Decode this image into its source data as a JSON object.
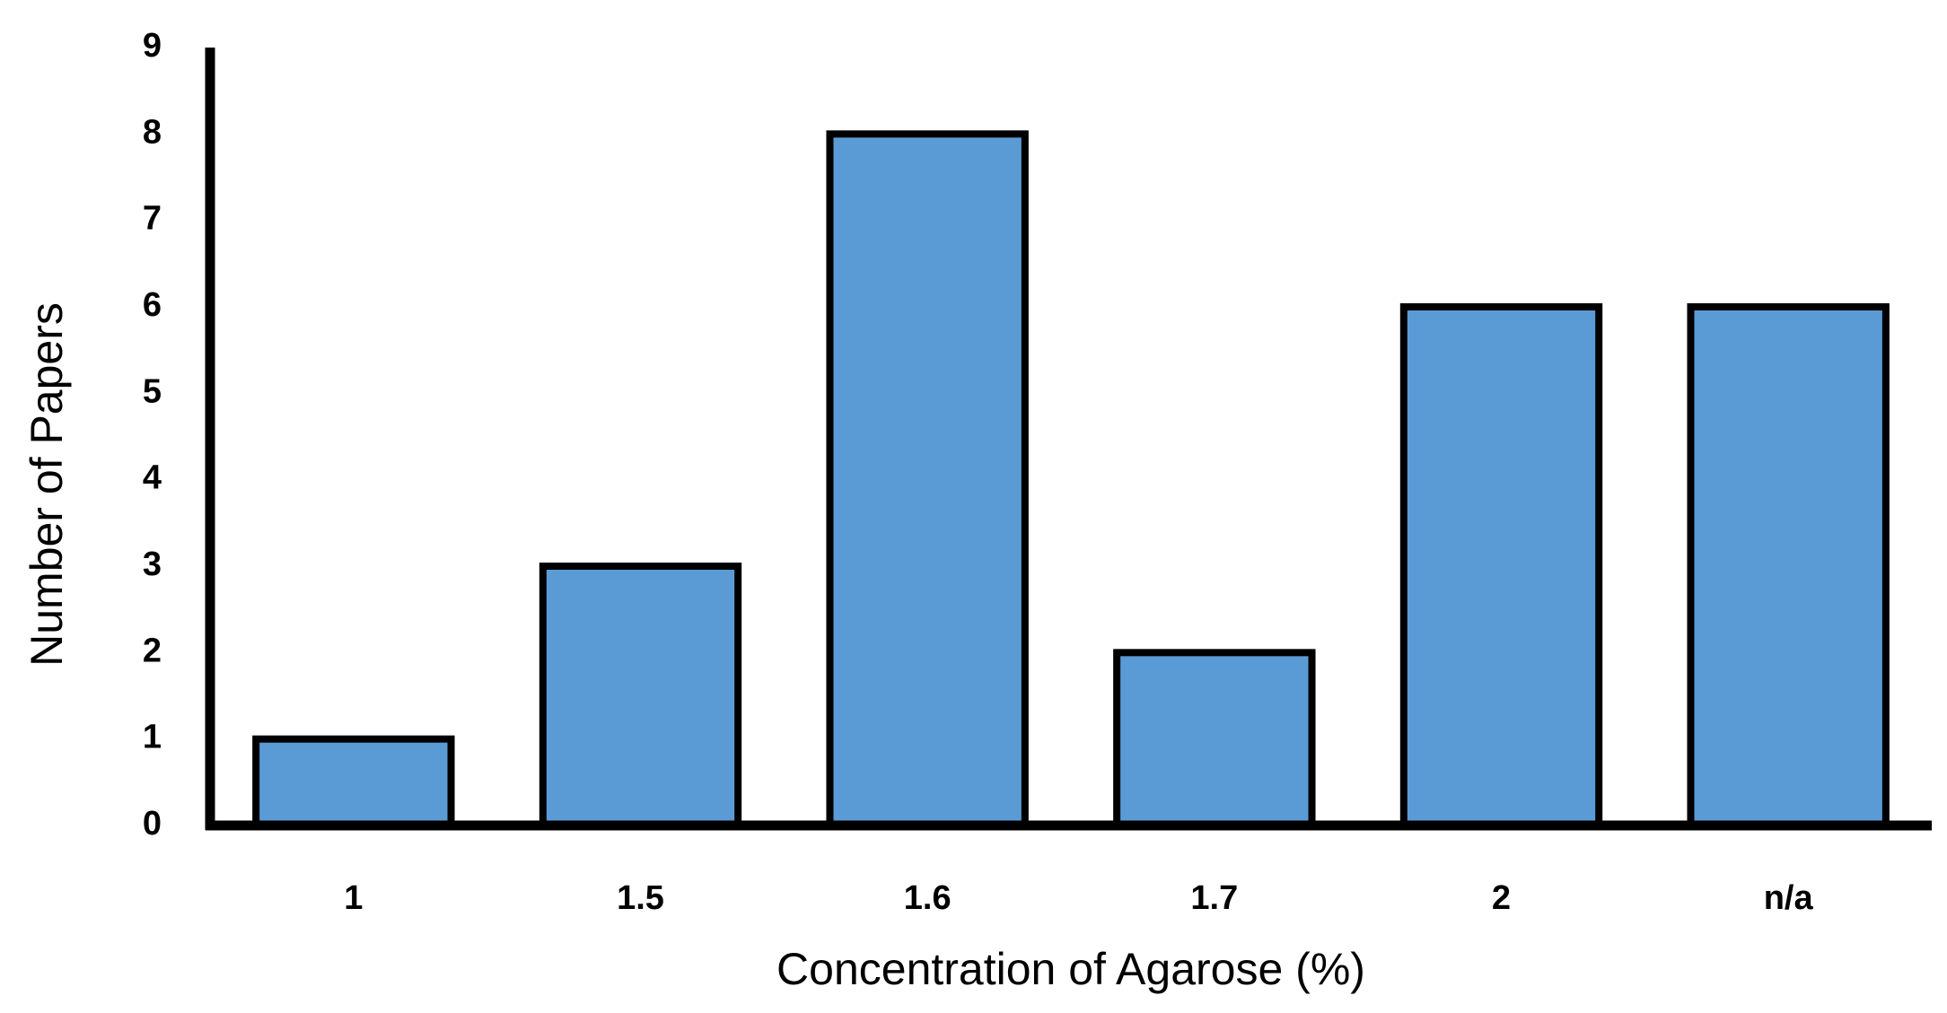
{
  "chart_data": {
    "type": "bar",
    "x_label": "Concentration of Agarose (%)",
    "y_label": "Number of Papers",
    "categories": [
      "1",
      "1.5",
      "1.6",
      "1.7",
      "2",
      "n/a"
    ],
    "values": [
      1,
      3,
      8,
      2,
      6,
      6
    ],
    "color": "#5b9bd5",
    "ylim": [
      0,
      9
    ],
    "yticks": [
      0,
      1,
      2,
      3,
      4,
      5,
      6,
      7,
      8,
      9
    ],
    "grid": false
  }
}
